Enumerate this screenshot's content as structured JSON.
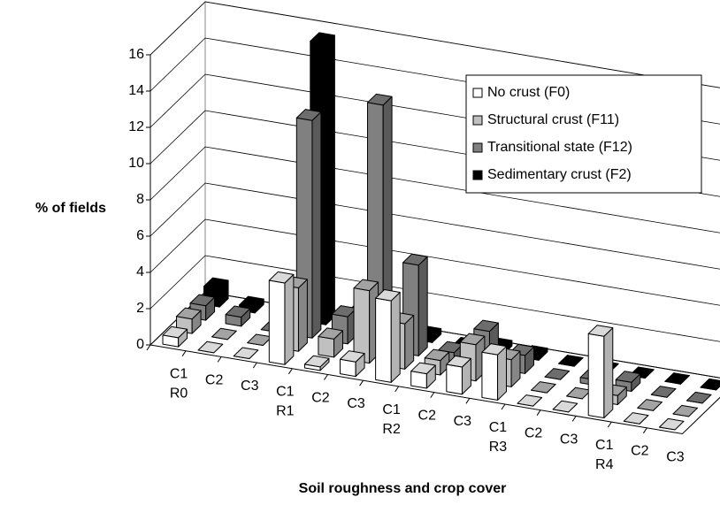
{
  "chart_data": {
    "type": "bar3d",
    "x_label": "Soil roughness and crop cover",
    "y_label": "% of fields",
    "categories": [
      "C1",
      "C2",
      "C3",
      "C1",
      "C2",
      "C3",
      "C1",
      "C2",
      "C3",
      "C1",
      "C2",
      "C3",
      "C1",
      "C2",
      "C3"
    ],
    "groups": [
      "R0",
      "R1",
      "R2",
      "R3",
      "R4"
    ],
    "series": [
      {
        "name": "No crust (F0)",
        "color": "#ffffff",
        "values": [
          0.5,
          0,
          0,
          4.5,
          0.2,
          0.8,
          4.5,
          0.8,
          1.5,
          2.5,
          0,
          0,
          4.5,
          0,
          0
        ]
      },
      {
        "name": "Structural crust (F11)",
        "color": "#c0c0c0",
        "values": [
          0.8,
          0,
          0,
          3.5,
          1,
          4,
          2.5,
          0.8,
          2,
          1.5,
          0,
          0,
          0.5,
          0,
          0
        ]
      },
      {
        "name": "Transitional state (F12)",
        "color": "#808080",
        "values": [
          0.8,
          0.5,
          0,
          12,
          1.5,
          13.5,
          5,
          0.5,
          2,
          1,
          0,
          0.3,
          0.5,
          0,
          0
        ]
      },
      {
        "name": "Sedimentary crust (F2)",
        "color": "#000000",
        "values": [
          1,
          0.3,
          0,
          15.5,
          0.8,
          0,
          0.3,
          0,
          0.3,
          0.2,
          0,
          0,
          0,
          0,
          0
        ]
      }
    ],
    "ylim": [
      0,
      16
    ],
    "yticks": [
      0,
      2,
      4,
      6,
      8,
      10,
      12,
      14,
      16
    ],
    "grid": true,
    "legend": "upper right"
  }
}
